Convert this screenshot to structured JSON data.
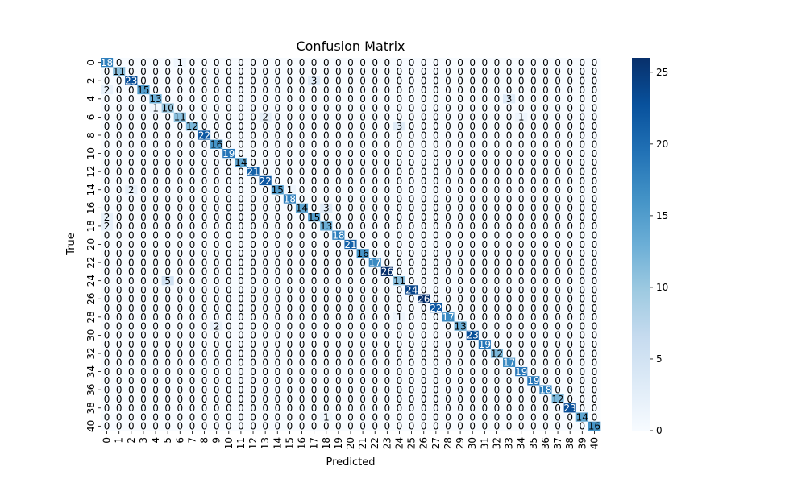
{
  "chart_data": {
    "type": "heatmap",
    "title": "Confusion Matrix",
    "xlabel": "Predicted",
    "ylabel": "True",
    "x_tick_labels": [
      "0",
      "1",
      "2",
      "3",
      "4",
      "5",
      "6",
      "7",
      "8",
      "9",
      "10",
      "11",
      "12",
      "13",
      "14",
      "15",
      "16",
      "17",
      "18",
      "19",
      "20",
      "21",
      "22",
      "23",
      "24",
      "25",
      "26",
      "27",
      "28",
      "29",
      "30",
      "31",
      "32",
      "33",
      "34",
      "35",
      "36",
      "37",
      "38",
      "39",
      "40"
    ],
    "y_tick_labels": [
      "0",
      "2",
      "4",
      "6",
      "8",
      "10",
      "12",
      "14",
      "16",
      "18",
      "20",
      "22",
      "24",
      "26",
      "28",
      "30",
      "32",
      "34",
      "36",
      "38",
      "40"
    ],
    "colorbar": {
      "min": 0,
      "max": 26,
      "ticks": [
        0,
        5,
        10,
        15,
        20,
        25
      ],
      "colormap": "Blues"
    },
    "diagonal": [
      18,
      11,
      23,
      15,
      13,
      10,
      11,
      12,
      22,
      16,
      19,
      14,
      21,
      22,
      15,
      18,
      14,
      15,
      13,
      18,
      21,
      16,
      17,
      26,
      11,
      24,
      26,
      22,
      17,
      13,
      23,
      19,
      12,
      17,
      19,
      19,
      18,
      12,
      23,
      14,
      16
    ],
    "off_diagonal": [
      {
        "row": 0,
        "col": 6,
        "value": 1
      },
      {
        "row": 3,
        "col": 0,
        "value": 2
      },
      {
        "row": 2,
        "col": 17,
        "value": 3
      },
      {
        "row": 4,
        "col": 33,
        "value": 3
      },
      {
        "row": 5,
        "col": 4,
        "value": 1
      },
      {
        "row": 6,
        "col": 13,
        "value": 2
      },
      {
        "row": 6,
        "col": 34,
        "value": 1
      },
      {
        "row": 7,
        "col": 24,
        "value": 3
      },
      {
        "row": 14,
        "col": 2,
        "value": 2
      },
      {
        "row": 14,
        "col": 15,
        "value": 1
      },
      {
        "row": 16,
        "col": 18,
        "value": 3
      },
      {
        "row": 17,
        "col": 0,
        "value": 2
      },
      {
        "row": 18,
        "col": 0,
        "value": 2
      },
      {
        "row": 24,
        "col": 5,
        "value": 5
      },
      {
        "row": 28,
        "col": 24,
        "value": 1
      },
      {
        "row": 29,
        "col": 9,
        "value": 2
      },
      {
        "row": 39,
        "col": 18,
        "value": 1
      }
    ]
  },
  "colors": {
    "text_dark": "#000000",
    "text_light": "#ffffff"
  }
}
